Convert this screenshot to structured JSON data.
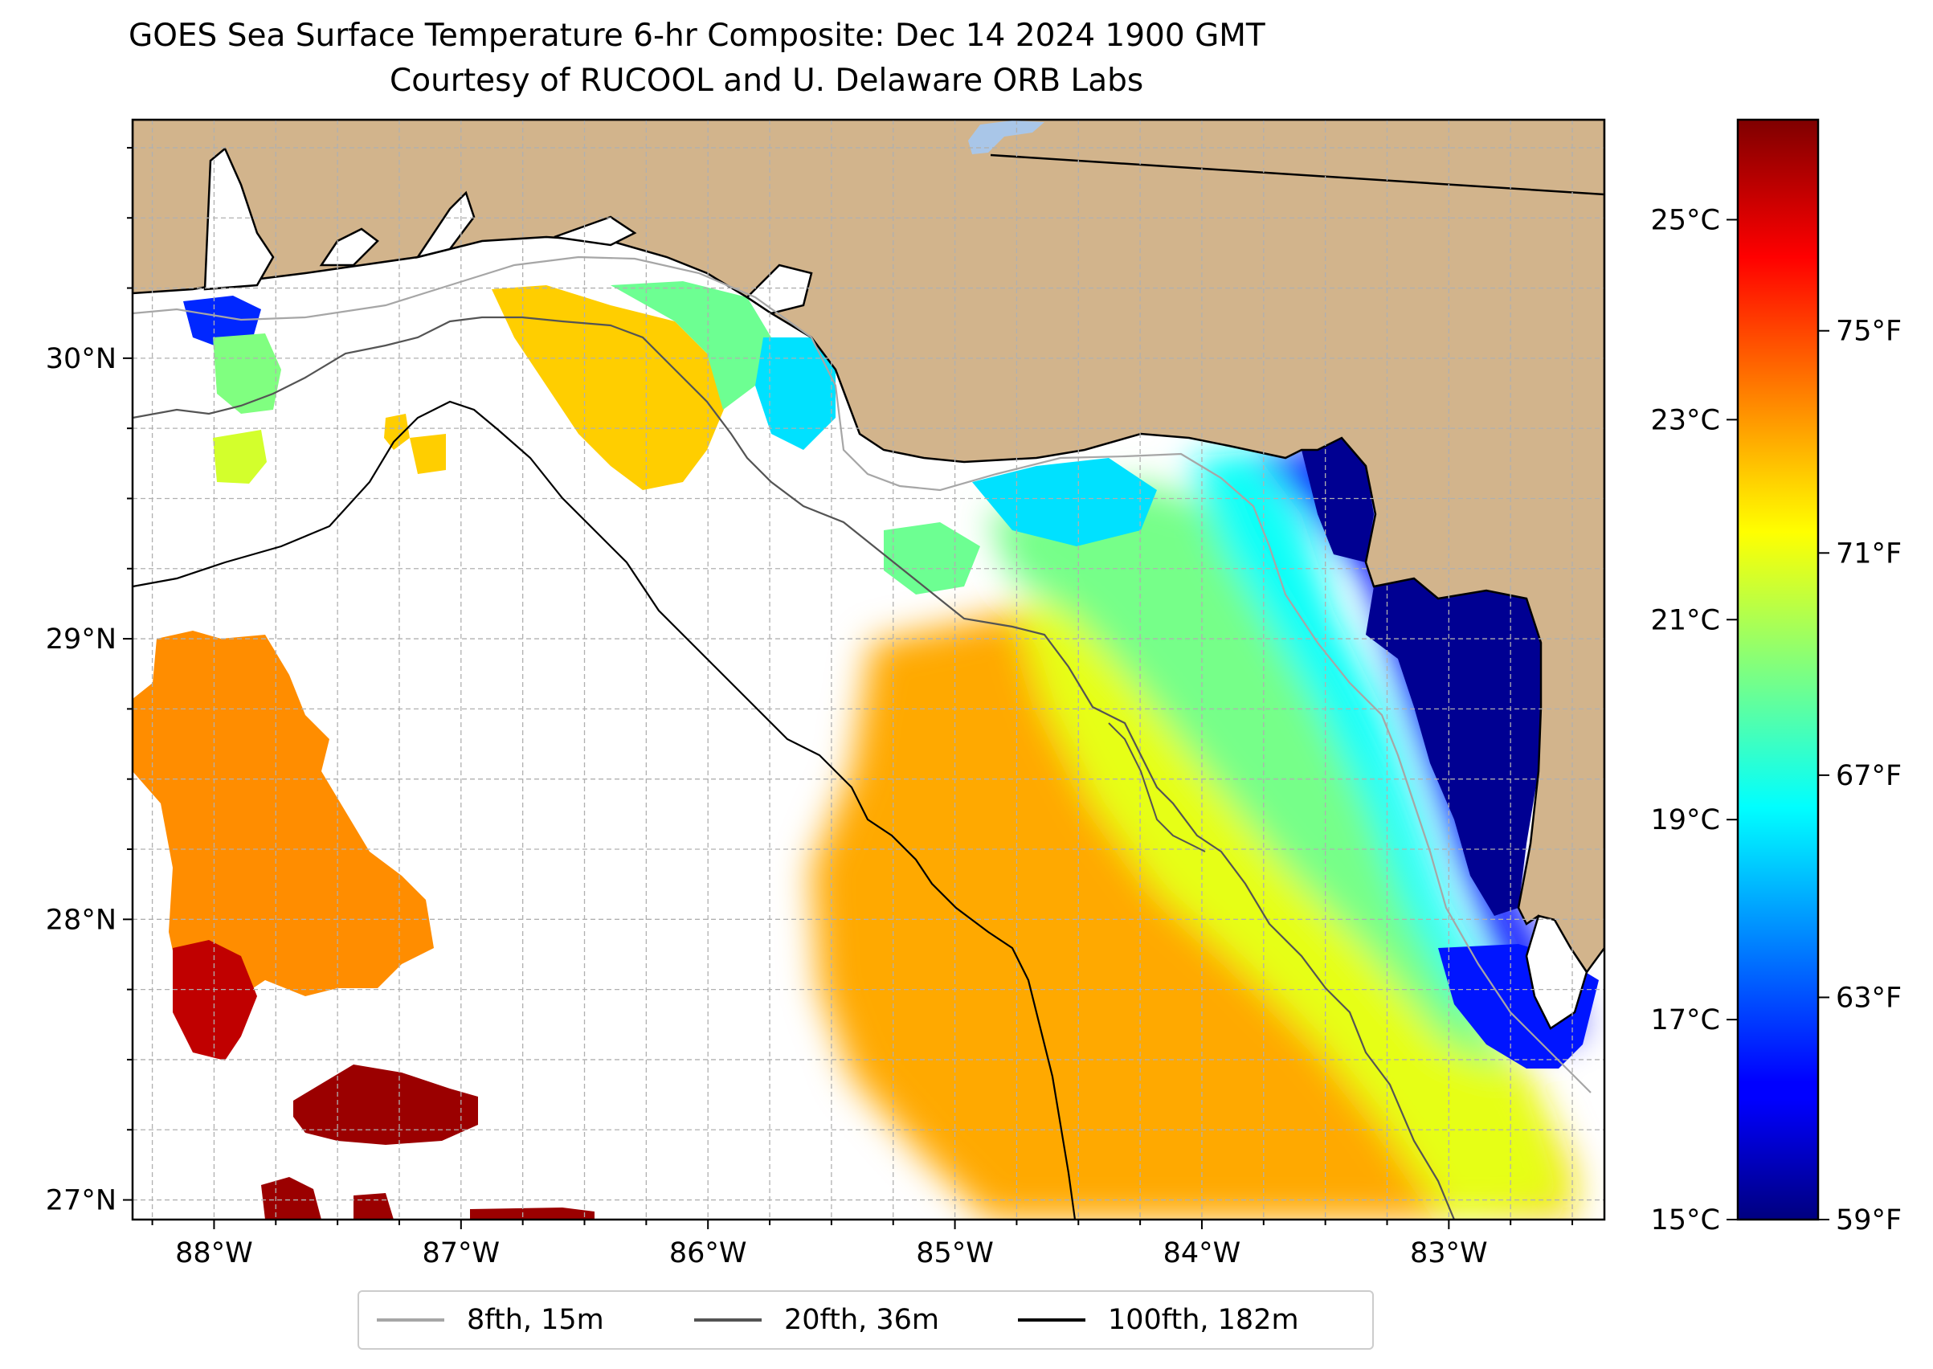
{
  "figure": {
    "title_line1": "GOES Sea Surface Temperature 6-hr Composite: Dec 14 2024 1900 GMT",
    "title_line2": "Courtesy of RUCOOL and U. Delaware ORB Labs"
  },
  "map": {
    "lon_min": -88.33,
    "lon_max": -82.37,
    "lat_min": 26.93,
    "lat_max": 30.85,
    "land_color": "#d2b48c",
    "ocean_color": "#ffffff",
    "grid": true,
    "lon_ticks": [
      {
        "value": -88,
        "label": "88°W"
      },
      {
        "value": -87,
        "label": "87°W"
      },
      {
        "value": -86,
        "label": "86°W"
      },
      {
        "value": -85,
        "label": "85°W"
      },
      {
        "value": -84,
        "label": "84°W"
      },
      {
        "value": -83,
        "label": "83°W"
      }
    ],
    "lat_ticks": [
      {
        "value": 30,
        "label": "30°N"
      },
      {
        "value": 29,
        "label": "29°N"
      },
      {
        "value": 28,
        "label": "28°N"
      },
      {
        "value": 27,
        "label": "27°N"
      }
    ]
  },
  "colorbar": {
    "colormap": "jet",
    "min_c": 15,
    "max_c": 26.0,
    "celsius_ticks": [
      {
        "value": 25,
        "label": "25°C"
      },
      {
        "value": 23,
        "label": "23°C"
      },
      {
        "value": 21,
        "label": "21°C"
      },
      {
        "value": 19,
        "label": "19°C"
      },
      {
        "value": 17,
        "label": "17°C"
      },
      {
        "value": 15,
        "label": "15°C"
      }
    ],
    "fahrenheit_ticks": [
      {
        "value": 75,
        "label": "75°F"
      },
      {
        "value": 71,
        "label": "71°F"
      },
      {
        "value": 67,
        "label": "67°F"
      },
      {
        "value": 63,
        "label": "63°F"
      },
      {
        "value": 59,
        "label": "59°F"
      }
    ]
  },
  "legend": {
    "items": [
      {
        "label": "8fth, 15m",
        "color": "#a6a6a6"
      },
      {
        "label": "20fth, 36m",
        "color": "#545454"
      },
      {
        "label": "100fth, 182m",
        "color": "#000000"
      }
    ]
  },
  "sst_regions": [
    {
      "name": "west-orange-patch",
      "temp_c": 23.1
    },
    {
      "name": "southwest-red-patch",
      "temp_c": 25.3
    },
    {
      "name": "southwest-darkred-patch",
      "temp_c": 25.7
    },
    {
      "name": "central-orange-shelf",
      "temp_c": 22.8
    },
    {
      "name": "yellow-band",
      "temp_c": 21.6
    },
    {
      "name": "green-band",
      "temp_c": 20.4
    },
    {
      "name": "cyan-band",
      "temp_c": 19.2
    },
    {
      "name": "blue-nearshore",
      "temp_c": 16.5
    },
    {
      "name": "darkblue-bigbend",
      "temp_c": 15.2
    },
    {
      "name": "panhandle-orange",
      "temp_c": 22.4
    },
    {
      "name": "panhandle-green",
      "temp_c": 20.3
    },
    {
      "name": "panhandle-cyan",
      "temp_c": 18.8
    },
    {
      "name": "apalachee-darkblue",
      "temp_c": 15.3
    },
    {
      "name": "mobile-bay-blue",
      "temp_c": 16.8
    },
    {
      "name": "mobile-bay-green",
      "temp_c": 20.5
    },
    {
      "name": "mobile-bay-yellow",
      "temp_c": 21.4
    },
    {
      "name": "tampa-blue",
      "temp_c": 16.6
    }
  ]
}
